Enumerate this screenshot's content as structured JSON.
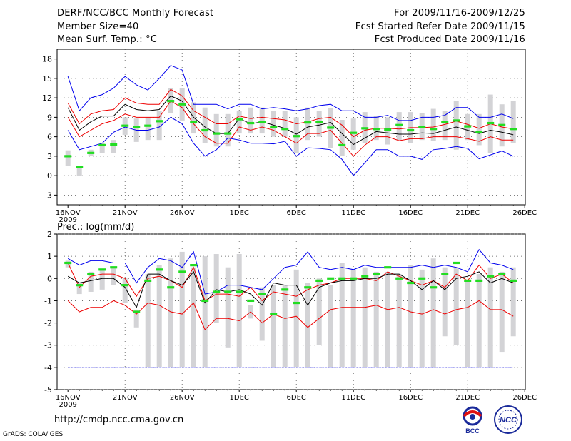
{
  "header": {
    "title": "DERF/NCC/BCC Monthly Forecast",
    "member_size": "Member Size=40",
    "var1_label": "Mean Surf. Temp.: °C",
    "period": "For 2009/11/16-2009/12/25",
    "refer_date": "Fcst Started Refer Date 2009/11/15",
    "produced_date": "Fcst Produced Date 2009/11/16"
  },
  "footer": {
    "url": "http://cmdp.ncc.cma.gov.cn",
    "credit": "GrADS: COLA/IGES",
    "logo_bcc": "BCC",
    "logo_ncc": "NCC"
  },
  "colors": {
    "bar": "#d3d3d6",
    "mean": "#22dd22",
    "blue": "#0000ee",
    "red": "#ee0000",
    "black": "#000000"
  },
  "chart_data": [
    {
      "type": "line",
      "title": "Mean Surf. Temp.: °C",
      "x_ticks": [
        "16NOV",
        "21NOV",
        "26NOV",
        "1DEC",
        "6DEC",
        "11DEC",
        "16DEC",
        "21DEC",
        "26DEC"
      ],
      "x_year": "2009",
      "y_ticks": [
        18,
        15,
        12,
        9,
        6,
        3,
        0,
        -3
      ],
      "ylim": [
        -4.5,
        19.5
      ],
      "grid": true,
      "days": 40,
      "series": [
        {
          "name": "upper",
          "color": "blue",
          "values": [
            15.3,
            10,
            12,
            12.5,
            13.5,
            15.3,
            14,
            13.2,
            15,
            17,
            16.3,
            11,
            11,
            11,
            10.3,
            11,
            11,
            10.3,
            10.5,
            10.3,
            10,
            10.3,
            10.8,
            11,
            10,
            10,
            9,
            9,
            9.3,
            8.5,
            8.5,
            9,
            9,
            9.3,
            10.5,
            10.5,
            9,
            9,
            9.5,
            8.8
          ]
        },
        {
          "name": "upper-mid",
          "color": "red",
          "values": [
            11.2,
            8,
            9.5,
            10,
            10.2,
            12,
            11.2,
            11,
            11,
            13.3,
            12.3,
            10,
            9,
            8,
            8,
            9.2,
            8.8,
            9,
            8.8,
            8.6,
            8,
            8.3,
            8.8,
            9,
            7.8,
            6,
            7,
            7.3,
            7.3,
            7.2,
            7.4,
            7.4,
            7.5,
            7.9,
            8.4,
            7.9,
            7.3,
            8,
            7.5,
            7.2
          ]
        },
        {
          "name": "median",
          "color": "black",
          "values": [
            10.5,
            7,
            8.3,
            9.2,
            9.2,
            11,
            10.2,
            10,
            10.2,
            12.3,
            11.5,
            9,
            7.5,
            6.5,
            6.5,
            8.8,
            8,
            8.3,
            7.8,
            7.3,
            6.4,
            7.5,
            7.8,
            8.2,
            6.5,
            4.8,
            5.8,
            6.8,
            6.6,
            6.4,
            6.4,
            6.6,
            6.5,
            7,
            7.5,
            7,
            6.5,
            7,
            6.7,
            6.3
          ]
        },
        {
          "name": "lower-mid",
          "color": "red",
          "values": [
            9,
            6,
            7,
            8,
            8.5,
            9.5,
            9,
            9,
            9,
            11.5,
            10.5,
            8,
            6,
            5,
            5,
            7.5,
            7,
            7.5,
            7,
            6,
            5,
            6.5,
            6.5,
            7,
            5,
            3,
            4.7,
            6,
            6,
            5.4,
            5.7,
            5.7,
            6,
            6,
            6,
            5.7,
            5.3,
            6,
            5.5,
            5.5
          ]
        },
        {
          "name": "lower",
          "color": "blue",
          "values": [
            7,
            4,
            4.5,
            5,
            6.7,
            7.5,
            7,
            7,
            7.5,
            9,
            8,
            5,
            3,
            4,
            5.8,
            5.5,
            5,
            5,
            4.9,
            5.3,
            3,
            4.3,
            4.2,
            4,
            2.5,
            0,
            2,
            4,
            4,
            3,
            3,
            2.5,
            4,
            4.2,
            4.5,
            4.2,
            2.6,
            3.2,
            3.8,
            3
          ]
        }
      ],
      "bar_ranges": [
        [
          1.5,
          3.9
        ],
        [
          0,
          1.5
        ],
        [
          3,
          4
        ],
        [
          3.5,
          5
        ],
        [
          3.5,
          5.5
        ],
        [
          6.3,
          9
        ],
        [
          5.2,
          8.8
        ],
        [
          5.5,
          9
        ],
        [
          5.5,
          10
        ],
        [
          9.6,
          13.5
        ],
        [
          8.5,
          13.5
        ],
        [
          6.5,
          11.3
        ],
        [
          5,
          10.5
        ],
        [
          4.5,
          9.5
        ],
        [
          4.5,
          9.5
        ],
        [
          6.5,
          10
        ],
        [
          6.5,
          10.5
        ],
        [
          6.5,
          10.5
        ],
        [
          6,
          10
        ],
        [
          6,
          10
        ],
        [
          3.5,
          9
        ],
        [
          5.5,
          10.5
        ],
        [
          6,
          10
        ],
        [
          4.3,
          10.4
        ],
        [
          3,
          8.6
        ],
        [
          4,
          8.8
        ],
        [
          5,
          9.8
        ],
        [
          5.5,
          9.2
        ],
        [
          4.8,
          9
        ],
        [
          5.5,
          9.8
        ],
        [
          5,
          9.8
        ],
        [
          5.5,
          9.6
        ],
        [
          5.3,
          10.3
        ],
        [
          5.5,
          10
        ],
        [
          4,
          11.5
        ],
        [
          5.5,
          9.5
        ],
        [
          4.7,
          9.5
        ],
        [
          3.5,
          12.5
        ],
        [
          4.5,
          11
        ],
        [
          5,
          11.5
        ]
      ],
      "mean_markers": [
        3,
        1.3,
        3.5,
        4.7,
        4.8,
        7.7,
        7.5,
        7.7,
        8.4,
        11.5,
        11,
        8.3,
        7,
        6.5,
        6.5,
        8.7,
        8.1,
        8.3,
        7.5,
        7.2,
        6.1,
        8.2,
        8.3,
        7.4,
        4.7,
        6.6,
        7.3,
        7.2,
        7.1,
        7.8,
        7,
        7.5,
        7.2,
        8.3,
        8.5,
        7.6,
        6.7,
        8.1,
        7.8,
        7.2
      ]
    },
    {
      "type": "line",
      "title": "Prec.: log(mm/d)",
      "x_ticks": [
        "16NOV",
        "21NOV",
        "26NOV",
        "1DEC",
        "6DEC",
        "11DEC",
        "16DEC",
        "21DEC",
        "26DEC"
      ],
      "x_year": "2009",
      "y_ticks": [
        2,
        1,
        0,
        -1,
        -2,
        -3,
        -4,
        -5
      ],
      "ylim": [
        -5,
        2
      ],
      "grid": true,
      "days": 40,
      "series": [
        {
          "name": "upper",
          "color": "blue",
          "values": [
            0.9,
            0.6,
            0.8,
            0.8,
            0.7,
            0.7,
            -0.2,
            0.5,
            0.9,
            0.8,
            0.5,
            1.2,
            -0.7,
            -0.6,
            -0.3,
            -0.3,
            -0.4,
            -0.5,
            0,
            0.5,
            0.6,
            1.2,
            0.5,
            0.4,
            0.5,
            0.4,
            0.6,
            0.5,
            0.5,
            0.5,
            0.5,
            0.6,
            0.5,
            0.6,
            0.5,
            0.3,
            1.3,
            0.7,
            0.6,
            0.4
          ]
        },
        {
          "name": "upper-mid",
          "color": "red",
          "values": [
            0.7,
            -0.4,
            0.1,
            0.2,
            0.2,
            0,
            -0.8,
            0,
            0.1,
            -0.1,
            -0.4,
            0.5,
            -1,
            -0.7,
            -0.7,
            -0.8,
            -0.4,
            -1,
            -0.6,
            -0.7,
            -0.8,
            -0.5,
            -0.3,
            -0.2,
            0,
            0,
            0,
            -0.1,
            0.3,
            0.1,
            -0.1,
            -0.3,
            -0.1,
            -0.4,
            0.2,
            -0.1,
            0.6,
            0,
            0.2,
            -0.2
          ]
        },
        {
          "name": "median",
          "color": "black",
          "values": [
            0.1,
            -0.2,
            -0.1,
            0,
            0,
            -0.4,
            -1.3,
            0.2,
            0.2,
            -0.1,
            -0.3,
            0.3,
            -1.1,
            -0.5,
            -0.6,
            -0.5,
            -0.7,
            -1.2,
            -0.2,
            -0.3,
            -0.3,
            -1.2,
            -0.4,
            -0.2,
            -0.1,
            -0.1,
            0,
            0,
            0.2,
            0.2,
            -0.1,
            -0.5,
            -0.1,
            -0.5,
            0,
            0.1,
            0.3,
            -0.2,
            0,
            -0.2
          ]
        },
        {
          "name": "lower-mid",
          "color": "red",
          "values": [
            -1,
            -1.5,
            -1.3,
            -1.3,
            -1,
            -1.2,
            -1.6,
            -1.1,
            -1.2,
            -1.5,
            -1.6,
            -1.1,
            -2.3,
            -1.8,
            -1.8,
            -1.9,
            -1.5,
            -2,
            -1.6,
            -1.8,
            -1.7,
            -2.2,
            -1.8,
            -1.4,
            -1.3,
            -1.3,
            -1.3,
            -1.2,
            -1.4,
            -1.3,
            -1.5,
            -1.6,
            -1.4,
            -1.6,
            -1.4,
            -1.3,
            -1,
            -1.4,
            -1.4,
            -1.7
          ]
        },
        {
          "name": "lower",
          "color": "blue",
          "values": [
            -4,
            -4,
            -4,
            -4,
            -4,
            -4,
            -4,
            -4,
            -4,
            -4,
            -4,
            -4,
            -4,
            -4,
            -4,
            -4,
            -4,
            -4,
            -4,
            -4,
            -4,
            -4,
            -4,
            -4,
            -4,
            -4,
            -4,
            -4,
            -4,
            -4,
            -4,
            -4,
            -4,
            -4,
            -4,
            -4,
            -4,
            -4,
            -4,
            -4
          ]
        }
      ],
      "bar_ranges": [
        [
          0.5,
          0.8
        ],
        [
          -0.7,
          -0.2
        ],
        [
          -0.6,
          0.3
        ],
        [
          -0.5,
          0.4
        ],
        [
          -0.3,
          0.5
        ],
        [
          -1.1,
          0
        ],
        [
          -2.2,
          -1.4
        ],
        [
          -4,
          0.2
        ],
        [
          -4,
          0.6
        ],
        [
          -4,
          0.9
        ],
        [
          -4,
          1.2
        ],
        [
          -4,
          0.5
        ],
        [
          -4,
          1
        ],
        [
          -2,
          1.1
        ],
        [
          -3.1,
          0.5
        ],
        [
          -4,
          1.1
        ],
        [
          -1.8,
          -1.2
        ],
        [
          -2.8,
          -0.4
        ],
        [
          -4,
          -0.3
        ],
        [
          -4,
          -0.3
        ],
        [
          -4,
          0.4
        ],
        [
          -4,
          -0.2
        ],
        [
          -3,
          0
        ],
        [
          -4,
          -0.3
        ],
        [
          -4,
          0.7
        ],
        [
          -4,
          0.4
        ],
        [
          -4,
          0.5
        ],
        [
          -4,
          0.3
        ],
        [
          -4,
          0.3
        ],
        [
          -4,
          0.2
        ],
        [
          -4,
          0.6
        ],
        [
          -4,
          0.4
        ],
        [
          -4,
          0.9
        ],
        [
          -2.6,
          0.5
        ],
        [
          -3,
          0.5
        ],
        [
          -4,
          -0.1
        ],
        [
          -4,
          0.2
        ],
        [
          -4,
          0.5
        ],
        [
          -3.3,
          0.3
        ],
        [
          -2.6,
          0.5
        ]
      ],
      "mean_markers": [
        0.7,
        -0.3,
        0.2,
        0.4,
        0.5,
        -0.3,
        -1.5,
        -0.1,
        0.4,
        -0.4,
        0.3,
        0.6,
        -1,
        -0.6,
        -0.6,
        -0.6,
        -1,
        -0.7,
        -1.6,
        -0.5,
        -1.1,
        -0.4,
        -0.1,
        0,
        0,
        0,
        0.1,
        0.2,
        0.5,
        0,
        -0.2,
        0,
        -0.4,
        0.2,
        0.7,
        -0.1,
        -0.1,
        0.1,
        0.2,
        -0.1
      ]
    }
  ]
}
